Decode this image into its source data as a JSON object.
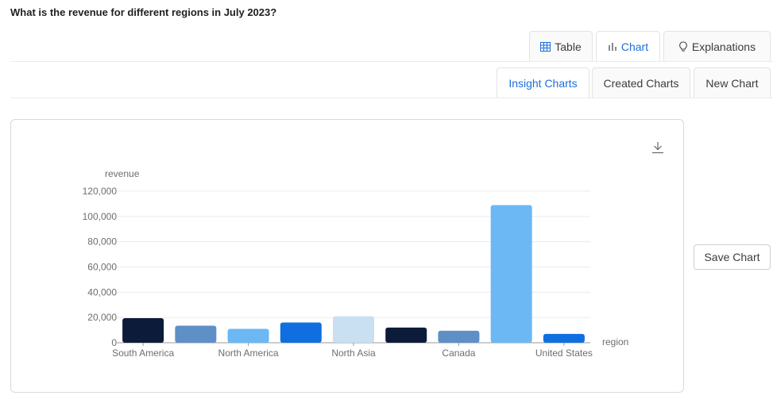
{
  "question": "What is the revenue for different regions in July 2023?",
  "view_tabs": [
    {
      "label": "Table",
      "icon": "table-icon",
      "active": false
    },
    {
      "label": "Chart",
      "icon": "bar-chart-icon",
      "active": true
    },
    {
      "label": "Explanations",
      "icon": "lightbulb-icon",
      "active": false
    }
  ],
  "chart_tabs": [
    {
      "label": "Insight Charts",
      "active": true
    },
    {
      "label": "Created Charts",
      "active": false
    },
    {
      "label": "New Chart",
      "active": false
    }
  ],
  "download_icon": "download-icon",
  "save_chart_label": "Save Chart",
  "colors": {
    "accent": "#1a6fdc"
  },
  "chart_data": {
    "type": "bar",
    "xlabel": "region",
    "ylabel": "revenue",
    "ylim": [
      0,
      120000
    ],
    "y_ticks": [
      "0",
      "20,000",
      "40,000",
      "60,000",
      "80,000",
      "100,000",
      "120,000"
    ],
    "x_tick_labels": [
      "South America",
      "North America",
      "North Asia",
      "Canada",
      "United States"
    ],
    "values": [
      19500,
      13500,
      11000,
      16000,
      21000,
      12000,
      9500,
      109000,
      7000
    ],
    "bar_colors": [
      "#0d1b3a",
      "#5f8fc7",
      "#6bb8f5",
      "#0f6fe0",
      "#c9dff2",
      "#0d1b3a",
      "#5f8fc7",
      "#6bb8f5",
      "#0f6fe0"
    ],
    "grid": true,
    "legend": "none"
  }
}
